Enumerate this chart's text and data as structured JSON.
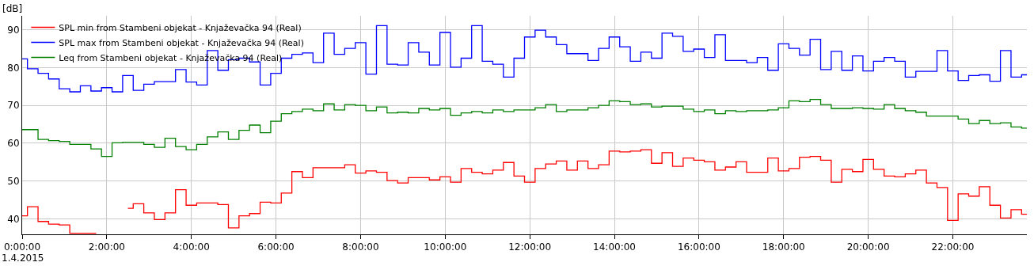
{
  "chart_data": {
    "type": "step",
    "ylabel": "[dB]",
    "annotations": [
      "1.4.2015"
    ],
    "x": [
      0,
      0.25,
      0.5,
      0.75,
      1,
      1.25,
      1.5,
      1.75,
      2,
      2.25,
      2.5,
      2.75,
      3,
      3.25,
      3.5,
      3.75,
      4,
      4.25,
      4.5,
      4.75,
      5,
      5.25,
      5.5,
      5.75,
      6,
      6.25,
      6.5,
      6.75,
      7,
      7.25,
      7.5,
      7.75,
      8,
      8.25,
      8.5,
      8.75,
      9,
      9.25,
      9.5,
      9.75,
      10,
      10.25,
      10.5,
      10.75,
      11,
      11.25,
      11.5,
      11.75,
      12,
      12.25,
      12.5,
      12.75,
      13,
      13.25,
      13.5,
      13.75,
      14,
      14.25,
      14.5,
      14.75,
      15,
      15.25,
      15.5,
      15.75,
      16,
      16.25,
      16.5,
      16.75,
      17,
      17.25,
      17.5,
      17.75,
      18,
      18.25,
      18.5,
      18.75,
      19,
      19.25,
      19.5,
      19.75,
      20,
      20.25,
      20.5,
      20.75,
      21,
      21.25,
      21.5,
      21.75,
      22,
      22.25,
      22.5,
      22.75,
      23,
      23.25,
      23.5,
      23.75
    ],
    "series": [
      {
        "name": "SPL min from Stambeni objekat - Knjaževačka 94 (Real)",
        "color": "#ff0000",
        "values": [
          40.8,
          43.2,
          39.3,
          38.6,
          38.4,
          36.2,
          36.2,
          36.2,
          null,
          null,
          42.8,
          44.0,
          41.6,
          39.8,
          41.6,
          47.7,
          43.6,
          44.2,
          44.2,
          43.8,
          37.6,
          40.8,
          41.4,
          44.4,
          44.2,
          46.8,
          52.5,
          50.9,
          53.5,
          53.5,
          53.5,
          54.3,
          52.1,
          52.7,
          52.3,
          50.1,
          49.5,
          50.9,
          50.9,
          50.3,
          51.1,
          49.7,
          53.3,
          52.3,
          51.9,
          52.9,
          54.9,
          51.3,
          49.7,
          53.3,
          54.5,
          55.3,
          52.9,
          55.3,
          53.3,
          54.3,
          57.9,
          57.7,
          57.9,
          58.3,
          54.7,
          57.5,
          53.9,
          56.1,
          55.5,
          55.1,
          52.9,
          53.7,
          55.1,
          52.3,
          52.3,
          56.1,
          52.7,
          53.3,
          56.3,
          56.5,
          55.5,
          49.7,
          53.1,
          52.5,
          55.7,
          53.1,
          51.3,
          51.1,
          51.9,
          52.9,
          49.5,
          48.3,
          39.6,
          46.6,
          46.0,
          48.5,
          43.6,
          40.2,
          42.4,
          41.2
        ]
      },
      {
        "name": "SPL max from Stambeni objekat - Knjaževačka 94 (Real)",
        "color": "#0000ff",
        "values": [
          82.3,
          79.7,
          78.5,
          77.0,
          74.4,
          73.6,
          75.2,
          73.8,
          74.7,
          73.6,
          77.9,
          74.0,
          75.6,
          76.3,
          76.3,
          79.5,
          76.2,
          75.4,
          84.5,
          79.3,
          82.1,
          82.5,
          81.5,
          75.4,
          78.5,
          82.5,
          83.5,
          83.9,
          81.3,
          89.1,
          83.5,
          85.1,
          86.6,
          78.3,
          91.1,
          80.9,
          80.7,
          86.6,
          84.1,
          80.7,
          89.3,
          80.1,
          82.5,
          91.1,
          81.7,
          80.9,
          77.5,
          82.5,
          88.1,
          89.9,
          88.1,
          86.1,
          83.7,
          83.7,
          81.9,
          85.1,
          88.1,
          85.5,
          81.7,
          84.1,
          82.5,
          89.1,
          88.3,
          84.3,
          84.9,
          82.7,
          88.7,
          81.9,
          81.9,
          81.3,
          82.7,
          79.3,
          86.3,
          85.1,
          83.3,
          87.5,
          79.5,
          84.3,
          79.3,
          83.1,
          79.1,
          81.7,
          82.7,
          81.7,
          77.5,
          79.0,
          79.0,
          84.5,
          79.1,
          76.6,
          77.9,
          78.1,
          76.4,
          84.5,
          77.5,
          78.1
        ]
      },
      {
        "name": "Leq from Stambeni objekat - Knjaževačka 94 (Real)",
        "color": "#008000",
        "values": [
          63.6,
          63.6,
          61.0,
          60.7,
          60.5,
          59.7,
          59.7,
          58.5,
          56.5,
          60.1,
          60.2,
          60.2,
          59.7,
          58.9,
          61.3,
          59.1,
          58.3,
          59.7,
          61.7,
          63.0,
          61.0,
          63.4,
          64.8,
          62.8,
          65.8,
          67.8,
          68.4,
          69.0,
          68.6,
          70.4,
          68.8,
          70.2,
          70.0,
          68.6,
          69.6,
          68.0,
          68.2,
          68.0,
          69.2,
          68.8,
          69.2,
          67.4,
          68.0,
          68.4,
          68.0,
          68.8,
          68.4,
          68.8,
          68.8,
          69.4,
          70.2,
          68.4,
          68.8,
          68.8,
          69.4,
          70.0,
          71.2,
          71.0,
          70.2,
          70.4,
          69.6,
          69.8,
          69.8,
          69.0,
          68.4,
          68.8,
          67.8,
          68.6,
          68.4,
          68.6,
          68.6,
          68.8,
          69.4,
          71.2,
          71.0,
          71.6,
          70.2,
          69.2,
          69.2,
          69.4,
          69.2,
          69.0,
          70.2,
          69.2,
          68.6,
          68.2,
          67.2,
          67.2,
          67.2,
          66.4,
          65.2,
          66.0,
          65.2,
          65.4,
          64.3,
          64.0
        ]
      }
    ],
    "xlim": [
      0,
      23.75
    ],
    "xticks": [
      {
        "value": 0,
        "label": "0:00:00"
      },
      {
        "value": 2,
        "label": "2:00:00"
      },
      {
        "value": 4,
        "label": "4:00:00"
      },
      {
        "value": 6,
        "label": "6:00:00"
      },
      {
        "value": 8,
        "label": "8:00:00"
      },
      {
        "value": 10,
        "label": "10:00:00"
      },
      {
        "value": 12,
        "label": "12:00:00"
      },
      {
        "value": 14,
        "label": "14:00:00"
      },
      {
        "value": 16,
        "label": "16:00:00"
      },
      {
        "value": 18,
        "label": "18:00:00"
      },
      {
        "value": 20,
        "label": "20:00:00"
      },
      {
        "value": 22,
        "label": "22:00:00"
      }
    ],
    "ylim": [
      35.9,
      93.7
    ],
    "yticks": [
      40,
      50,
      60,
      70,
      80,
      90
    ],
    "grid": true,
    "legend": "top left",
    "line_style": "solid"
  }
}
